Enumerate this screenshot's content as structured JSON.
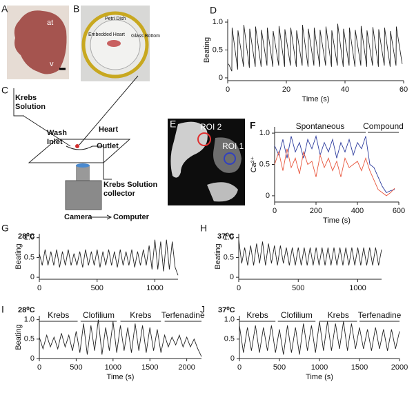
{
  "panel_labels": [
    "A",
    "B",
    "C",
    "D",
    "E",
    "F",
    "G",
    "H",
    "I",
    "J"
  ],
  "photo_a": {
    "labels": [
      "at",
      "v"
    ]
  },
  "photo_b": {
    "labels": [
      "Petri Dish",
      "Embedded Heart",
      "Glass Bottom"
    ]
  },
  "diagram_c": {
    "lines": [
      "Krebs",
      "Solution",
      "Wash",
      "Inlet",
      "Heart",
      "Outlet",
      "Krebs Solution",
      "collector",
      "Camera",
      "Computer"
    ]
  },
  "image_e": {
    "rois": [
      "ROI 2",
      "ROI 1"
    ]
  },
  "chart_data": [
    {
      "type": "line",
      "ylabel": "Beating",
      "xlabel": "Time (s)",
      "x": [
        0.3,
        1.4,
        1.5,
        3.4,
        3.5,
        5.4,
        5.5,
        7.4,
        7.5,
        9.4,
        9.5,
        11.4,
        11.5,
        13.4,
        13.5,
        15.4,
        15.5,
        17.4,
        17.5,
        19.4,
        19.5,
        21.4,
        21.5,
        23.4,
        23.5,
        25.4,
        25.5,
        27.4,
        27.5,
        29.4,
        29.5,
        31.4,
        31.5,
        33.4,
        33.5,
        35.4,
        35.5,
        37.4,
        37.5,
        39.4,
        39.5,
        41.4,
        41.5,
        43.4,
        43.5,
        45.4,
        45.5,
        47.4,
        47.5,
        49.4,
        49.5,
        51.4,
        51.5,
        53.4,
        53.5,
        55.4,
        55.5,
        57.4,
        57.5,
        59.5
      ],
      "series": [
        {
          "color": "#222222",
          "values": [
            0.25,
            0.12,
            0.9,
            0.15,
            0.85,
            0.2,
            0.95,
            0.18,
            0.88,
            0.2,
            0.92,
            0.2,
            0.86,
            0.22,
            0.9,
            0.2,
            0.84,
            0.22,
            0.93,
            0.2,
            0.87,
            0.22,
            0.9,
            0.2,
            0.85,
            0.22,
            0.95,
            0.2,
            0.88,
            0.22,
            0.9,
            0.2,
            0.86,
            0.22,
            0.92,
            0.2,
            0.85,
            0.22,
            0.97,
            0.2,
            0.88,
            0.22,
            0.9,
            0.2,
            0.86,
            0.22,
            0.93,
            0.2,
            0.85,
            0.22,
            0.91,
            0.2,
            0.87,
            0.22,
            0.9,
            0.2,
            0.84,
            0.22,
            0.92,
            0.25
          ]
        }
      ],
      "xlim": [
        0,
        60
      ],
      "ylim": [
        -0.05,
        1.05
      ],
      "xticks": [
        0,
        20,
        40,
        60
      ],
      "yticks": [
        0,
        0.5,
        {
          "value": 1,
          "label": "1.0"
        }
      ]
    },
    {
      "type": "line",
      "ylabel": "Ca²⁺",
      "xlabel": "Time (s)",
      "segments": [
        {
          "label": "Spontaneous",
          "start": 0,
          "end": 440
        },
        {
          "label": "Compound",
          "start": 450,
          "end": 600
        }
      ],
      "x": [
        0,
        20,
        40,
        60,
        80,
        100,
        120,
        140,
        160,
        180,
        200,
        220,
        240,
        260,
        280,
        300,
        320,
        340,
        360,
        380,
        400,
        420,
        440,
        460,
        480,
        500,
        520,
        540,
        560,
        580
      ],
      "series": [
        {
          "color": "#2b3a9c",
          "values": [
            0.8,
            0.65,
            0.9,
            0.6,
            0.95,
            0.7,
            0.85,
            0.6,
            0.9,
            0.75,
            0.95,
            0.65,
            0.85,
            0.7,
            0.9,
            0.6,
            0.85,
            0.7,
            0.9,
            0.65,
            0.85,
            0.75,
            0.95,
            0.5,
            0.45,
            0.3,
            0.15,
            0.05,
            0.08,
            0.1
          ]
        },
        {
          "color": "#e8553c",
          "values": [
            0.5,
            0.7,
            0.4,
            0.75,
            0.45,
            0.6,
            0.35,
            0.7,
            0.5,
            0.55,
            0.3,
            0.65,
            0.45,
            0.6,
            0.4,
            0.55,
            0.3,
            0.6,
            0.45,
            0.5,
            0.55,
            0.4,
            0.6,
            0.4,
            0.25,
            0.1,
            0.05,
            0.0,
            0.05,
            0.12
          ]
        }
      ],
      "xlim": [
        0,
        600
      ],
      "ylim": [
        -0.1,
        1.1
      ],
      "xticks": [
        0,
        200,
        400,
        600
      ],
      "yticks": [
        0,
        0.5,
        {
          "value": 1,
          "label": "1.0"
        }
      ]
    },
    {
      "type": "line",
      "title": "28⁰C",
      "ylabel": "Beating",
      "x": [
        0,
        25,
        50,
        75,
        100,
        125,
        150,
        175,
        200,
        225,
        250,
        275,
        300,
        325,
        350,
        375,
        400,
        425,
        450,
        475,
        500,
        525,
        550,
        575,
        600,
        625,
        650,
        675,
        700,
        725,
        750,
        775,
        800,
        825,
        850,
        875,
        900,
        925,
        950,
        975,
        1000,
        1025,
        1050,
        1075,
        1100,
        1125,
        1150,
        1175,
        1200
      ],
      "series": [
        {
          "color": "#222222",
          "values": [
            0.6,
            0.3,
            0.7,
            0.3,
            0.65,
            0.3,
            0.7,
            0.25,
            0.65,
            0.3,
            0.7,
            0.3,
            0.6,
            0.3,
            0.65,
            0.25,
            0.7,
            0.3,
            0.65,
            0.3,
            0.7,
            0.25,
            0.65,
            0.3,
            0.7,
            0.3,
            0.65,
            0.25,
            0.7,
            0.3,
            0.65,
            0.3,
            0.7,
            0.25,
            0.65,
            0.3,
            0.7,
            0.3,
            0.8,
            0.2,
            0.95,
            0.2,
            0.9,
            0.15,
            0.95,
            0.2,
            0.9,
            0.25,
            0.05
          ]
        }
      ],
      "xlim": [
        0,
        1200
      ],
      "ylim": [
        -0.05,
        1.1
      ],
      "xticks": [
        0,
        500,
        1000
      ],
      "yticks": [
        0,
        0.5,
        {
          "value": 1,
          "label": "1.0"
        }
      ]
    },
    {
      "type": "line",
      "title": "37⁰C",
      "ylabel": "Beating",
      "x": [
        0,
        25,
        50,
        75,
        100,
        125,
        150,
        175,
        200,
        225,
        250,
        275,
        300,
        325,
        350,
        375,
        400,
        425,
        450,
        475,
        500,
        525,
        550,
        575,
        600,
        625,
        650,
        675,
        700,
        725,
        750,
        775,
        800,
        825,
        850,
        875,
        900,
        925,
        950,
        975,
        1000,
        1025,
        1050,
        1075,
        1100,
        1125,
        1150,
        1175,
        1200
      ],
      "series": [
        {
          "color": "#222222",
          "values": [
            0.95,
            0.35,
            0.75,
            0.3,
            0.8,
            0.3,
            0.85,
            0.35,
            0.9,
            0.3,
            0.85,
            0.35,
            0.8,
            0.3,
            0.8,
            0.35,
            0.75,
            0.3,
            0.75,
            0.3,
            0.75,
            0.3,
            0.75,
            0.3,
            0.75,
            0.3,
            0.75,
            0.3,
            0.75,
            0.3,
            0.75,
            0.3,
            0.75,
            0.3,
            0.75,
            0.3,
            0.75,
            0.3,
            0.75,
            0.3,
            0.75,
            0.3,
            0.75,
            0.3,
            0.75,
            0.3,
            0.75,
            0.3,
            0.7
          ]
        }
      ],
      "xlim": [
        0,
        1200
      ],
      "ylim": [
        -0.05,
        1.1
      ],
      "xticks": [
        0,
        500,
        1000
      ],
      "yticks": [
        0,
        0.5,
        {
          "value": 1,
          "label": "1.0"
        }
      ]
    },
    {
      "type": "line",
      "title": "28⁰C",
      "ylabel": "Beating",
      "xlabel": "Time (s)",
      "segments": [
        {
          "label": "Krebs",
          "start": 0,
          "end": 520
        },
        {
          "label": "Clofilium",
          "start": 560,
          "end": 1050
        },
        {
          "label": "Krebs",
          "start": 1100,
          "end": 1650
        },
        {
          "label": "Terfenadine",
          "start": 1700,
          "end": 2200
        }
      ],
      "x": [
        0,
        50,
        100,
        150,
        200,
        250,
        300,
        350,
        400,
        450,
        500,
        550,
        600,
        650,
        700,
        750,
        800,
        850,
        900,
        950,
        1000,
        1050,
        1100,
        1150,
        1200,
        1250,
        1300,
        1350,
        1400,
        1450,
        1500,
        1550,
        1600,
        1650,
        1700,
        1750,
        1800,
        1850,
        1900,
        1950,
        2000,
        2050,
        2100,
        2150,
        2200
      ],
      "series": [
        {
          "color": "#222222",
          "values": [
            0.55,
            0.25,
            0.6,
            0.3,
            0.55,
            0.25,
            0.65,
            0.3,
            0.6,
            0.2,
            0.7,
            0.15,
            0.9,
            0.1,
            0.85,
            0.2,
            1.0,
            0.1,
            0.8,
            0.2,
            0.95,
            0.15,
            0.85,
            0.2,
            0.8,
            0.15,
            0.9,
            0.2,
            0.85,
            0.15,
            0.8,
            0.2,
            0.75,
            0.15,
            0.6,
            0.3,
            0.55,
            0.35,
            0.6,
            0.3,
            0.55,
            0.3,
            0.5,
            0.25,
            0.05
          ]
        }
      ],
      "xlim": [
        0,
        2200
      ],
      "ylim": [
        0,
        1.1
      ],
      "xticks": [
        0,
        500,
        1000,
        1500,
        2000
      ],
      "yticks": [
        0,
        0.5,
        {
          "value": 1,
          "label": "1.0"
        }
      ]
    },
    {
      "type": "line",
      "title": "37⁰C",
      "xlabel": "Time (s)",
      "segments": [
        {
          "label": "Krebs",
          "start": 0,
          "end": 450
        },
        {
          "label": "Clofilium",
          "start": 480,
          "end": 950
        },
        {
          "label": "Krebs",
          "start": 1000,
          "end": 1470
        },
        {
          "label": "Terfenadine",
          "start": 1500,
          "end": 2000
        }
      ],
      "x": [
        0,
        50,
        100,
        150,
        200,
        250,
        300,
        350,
        400,
        450,
        500,
        550,
        600,
        650,
        700,
        750,
        800,
        850,
        900,
        950,
        1000,
        1050,
        1100,
        1150,
        1200,
        1250,
        1300,
        1350,
        1400,
        1450,
        1500,
        1550,
        1600,
        1650,
        1700,
        1750,
        1800,
        1850,
        1900,
        1950,
        2000
      ],
      "series": [
        {
          "color": "#222222",
          "values": [
            0.85,
            0.15,
            0.8,
            0.2,
            0.85,
            0.15,
            0.8,
            0.2,
            0.85,
            0.15,
            0.75,
            0.1,
            0.85,
            0.15,
            0.8,
            0.1,
            0.9,
            0.2,
            0.85,
            0.15,
            0.95,
            0.2,
            0.95,
            0.2,
            0.9,
            0.25,
            0.95,
            0.2,
            0.9,
            0.25,
            0.8,
            0.25,
            0.75,
            0.2,
            0.8,
            0.25,
            0.75,
            0.2,
            0.75,
            0.25,
            0.7
          ]
        }
      ],
      "xlim": [
        0,
        2000
      ],
      "ylim": [
        0,
        1.1
      ],
      "xticks": [
        0,
        500,
        1000,
        1500,
        2000
      ],
      "yticks": [
        0,
        0.5,
        {
          "value": 1,
          "label": "1.0"
        }
      ]
    }
  ]
}
